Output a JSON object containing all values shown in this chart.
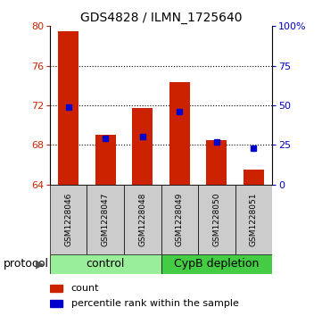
{
  "title": "GDS4828 / ILMN_1725640",
  "samples": [
    "GSM1228046",
    "GSM1228047",
    "GSM1228048",
    "GSM1228049",
    "GSM1228050",
    "GSM1228051"
  ],
  "bar_baseline": 64,
  "bar_tops": [
    79.5,
    69.0,
    71.7,
    74.3,
    68.5,
    65.5
  ],
  "blue_y": [
    71.8,
    68.7,
    68.85,
    71.4,
    68.35,
    67.7
  ],
  "ylim_left": [
    64,
    80
  ],
  "ylim_right": [
    0,
    100
  ],
  "yticks_left": [
    64,
    68,
    72,
    76,
    80
  ],
  "yticks_right": [
    0,
    25,
    50,
    75,
    100
  ],
  "ytick_right_labels": [
    "0",
    "25",
    "50",
    "75",
    "100%"
  ],
  "ytick_left_labels": [
    "64",
    "68",
    "72",
    "76",
    "80"
  ],
  "grid_at": [
    68,
    72,
    76
  ],
  "bar_color": "#cc2200",
  "blue_color": "#0000cc",
  "groups": [
    {
      "label": "control",
      "samples": [
        0,
        1,
        2
      ],
      "color": "#99ee99"
    },
    {
      "label": "CypB depletion",
      "samples": [
        3,
        4,
        5
      ],
      "color": "#44cc44"
    }
  ],
  "protocol_label": "protocol",
  "legend_count_label": "count",
  "legend_pct_label": "percentile rank within the sample",
  "bar_width": 0.55,
  "label_box_bg": "#cccccc",
  "left_tick_color": "#cc2200",
  "right_tick_color": "#0000cc",
  "title_fontsize": 10,
  "tick_fontsize": 8,
  "sample_fontsize": 6.5,
  "group_fontsize": 9,
  "legend_fontsize": 8,
  "protocol_fontsize": 9
}
